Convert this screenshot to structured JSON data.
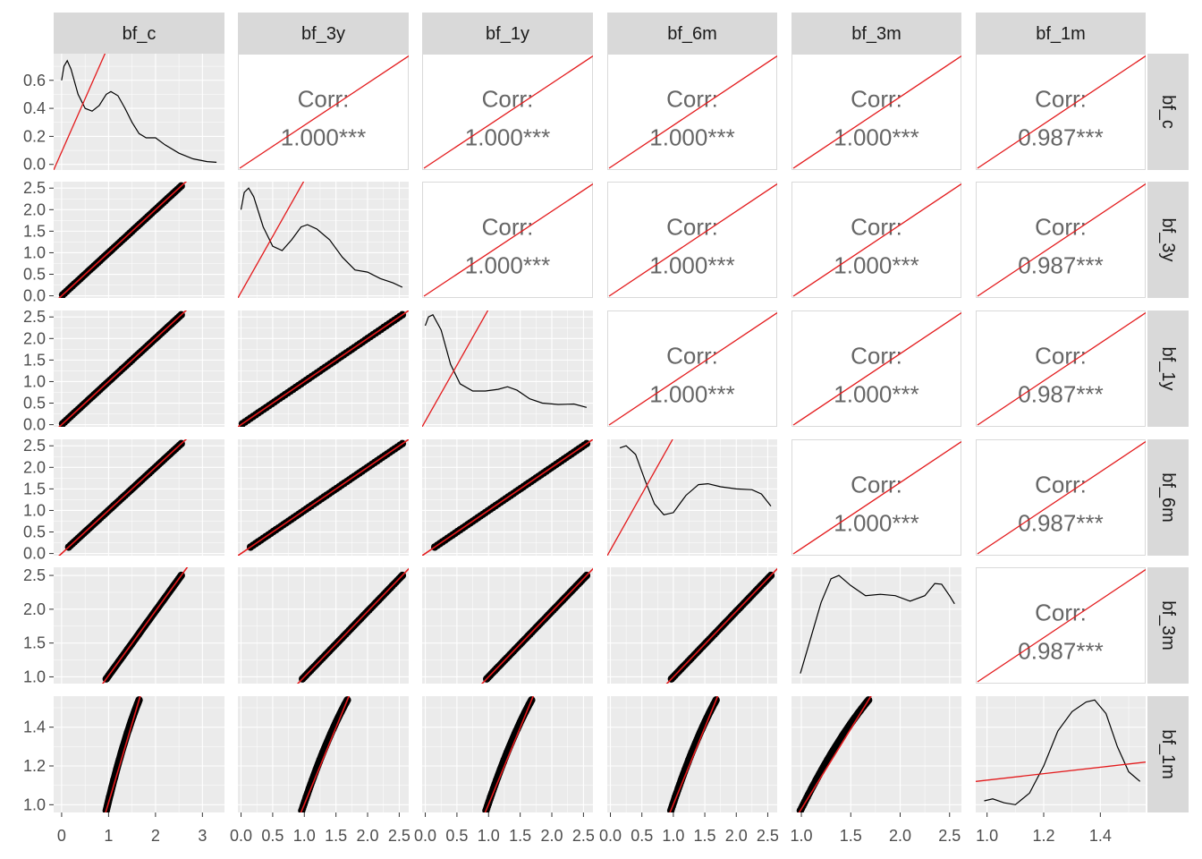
{
  "chart_data": {
    "type": "scatter-matrix",
    "variables": [
      "bf_c",
      "bf_3y",
      "bf_1y",
      "bf_6m",
      "bf_3m",
      "bf_1m"
    ],
    "corr_label": "Corr:",
    "correlations": [
      {
        "row": "bf_c",
        "col": "bf_3y",
        "value": "1.000***"
      },
      {
        "row": "bf_c",
        "col": "bf_1y",
        "value": "1.000***"
      },
      {
        "row": "bf_c",
        "col": "bf_6m",
        "value": "1.000***"
      },
      {
        "row": "bf_c",
        "col": "bf_3m",
        "value": "1.000***"
      },
      {
        "row": "bf_c",
        "col": "bf_1m",
        "value": "0.987***"
      },
      {
        "row": "bf_3y",
        "col": "bf_1y",
        "value": "1.000***"
      },
      {
        "row": "bf_3y",
        "col": "bf_6m",
        "value": "1.000***"
      },
      {
        "row": "bf_3y",
        "col": "bf_3m",
        "value": "1.000***"
      },
      {
        "row": "bf_3y",
        "col": "bf_1m",
        "value": "0.987***"
      },
      {
        "row": "bf_1y",
        "col": "bf_6m",
        "value": "1.000***"
      },
      {
        "row": "bf_1y",
        "col": "bf_3m",
        "value": "1.000***"
      },
      {
        "row": "bf_1y",
        "col": "bf_1m",
        "value": "0.987***"
      },
      {
        "row": "bf_6m",
        "col": "bf_3m",
        "value": "1.000***"
      },
      {
        "row": "bf_6m",
        "col": "bf_1m",
        "value": "0.987***"
      },
      {
        "row": "bf_3m",
        "col": "bf_1m",
        "value": "0.987***"
      }
    ],
    "x_axes": [
      {
        "var": "bf_c",
        "range": [
          -0.17,
          3.47
        ],
        "ticks": [
          {
            "v": 0,
            "label": "0"
          },
          {
            "v": 1,
            "label": "1"
          },
          {
            "v": 2,
            "label": "2"
          },
          {
            "v": 3,
            "label": "3"
          }
        ]
      },
      {
        "var": "bf_3y",
        "range": [
          -0.05,
          2.65
        ],
        "ticks": [
          {
            "v": 0,
            "label": "0.0"
          },
          {
            "v": 0.5,
            "label": "0.5"
          },
          {
            "v": 1,
            "label": "1.0"
          },
          {
            "v": 1.5,
            "label": "1.5"
          },
          {
            "v": 2,
            "label": "2.0"
          },
          {
            "v": 2.5,
            "label": "2.5"
          }
        ]
      },
      {
        "var": "bf_1y",
        "range": [
          -0.05,
          2.65
        ],
        "ticks": [
          {
            "v": 0,
            "label": "0.0"
          },
          {
            "v": 0.5,
            "label": "0.5"
          },
          {
            "v": 1,
            "label": "1.0"
          },
          {
            "v": 1.5,
            "label": "1.5"
          },
          {
            "v": 2,
            "label": "2.0"
          },
          {
            "v": 2.5,
            "label": "2.5"
          }
        ]
      },
      {
        "var": "bf_6m",
        "range": [
          -0.05,
          2.65
        ],
        "ticks": [
          {
            "v": 0,
            "label": "0.0"
          },
          {
            "v": 0.5,
            "label": "0.5"
          },
          {
            "v": 1,
            "label": "1.0"
          },
          {
            "v": 1.5,
            "label": "1.5"
          },
          {
            "v": 2,
            "label": "2.0"
          },
          {
            "v": 2.5,
            "label": "2.5"
          }
        ]
      },
      {
        "var": "bf_3m",
        "range": [
          0.9,
          2.62
        ],
        "ticks": [
          {
            "v": 1,
            "label": "1.0"
          },
          {
            "v": 1.5,
            "label": "1.5"
          },
          {
            "v": 2,
            "label": "2.0"
          },
          {
            "v": 2.5,
            "label": "2.5"
          }
        ]
      },
      {
        "var": "bf_1m",
        "range": [
          0.96,
          1.56
        ],
        "ticks": [
          {
            "v": 1,
            "label": "1.0"
          },
          {
            "v": 1.2,
            "label": "1.2"
          },
          {
            "v": 1.4,
            "label": "1.4"
          }
        ]
      }
    ],
    "y_axes": [
      {
        "var": "bf_c",
        "range": [
          -0.04,
          0.79
        ],
        "ticks": [
          {
            "v": 0,
            "label": "0.0"
          },
          {
            "v": 0.2,
            "label": "0.2"
          },
          {
            "v": 0.4,
            "label": "0.4"
          },
          {
            "v": 0.6,
            "label": "0.6"
          }
        ]
      },
      {
        "var": "bf_3y",
        "range": [
          -0.05,
          2.65
        ],
        "ticks": [
          {
            "v": 0,
            "label": "0.0"
          },
          {
            "v": 0.5,
            "label": "0.5"
          },
          {
            "v": 1,
            "label": "1.0"
          },
          {
            "v": 1.5,
            "label": "1.5"
          },
          {
            "v": 2,
            "label": "2.0"
          },
          {
            "v": 2.5,
            "label": "2.5"
          }
        ]
      },
      {
        "var": "bf_1y",
        "range": [
          -0.05,
          2.65
        ],
        "ticks": [
          {
            "v": 0,
            "label": "0.0"
          },
          {
            "v": 0.5,
            "label": "0.5"
          },
          {
            "v": 1,
            "label": "1.0"
          },
          {
            "v": 1.5,
            "label": "1.5"
          },
          {
            "v": 2,
            "label": "2.0"
          },
          {
            "v": 2.5,
            "label": "2.5"
          }
        ]
      },
      {
        "var": "bf_6m",
        "range": [
          -0.05,
          2.65
        ],
        "ticks": [
          {
            "v": 0,
            "label": "0.0"
          },
          {
            "v": 0.5,
            "label": "0.5"
          },
          {
            "v": 1,
            "label": "1.0"
          },
          {
            "v": 1.5,
            "label": "1.5"
          },
          {
            "v": 2,
            "label": "2.0"
          },
          {
            "v": 2.5,
            "label": "2.5"
          }
        ]
      },
      {
        "var": "bf_3m",
        "range": [
          0.9,
          2.62
        ],
        "ticks": [
          {
            "v": 1,
            "label": "1.0"
          },
          {
            "v": 1.5,
            "label": "1.5"
          },
          {
            "v": 2,
            "label": "2.0"
          },
          {
            "v": 2.5,
            "label": "2.5"
          }
        ]
      },
      {
        "var": "bf_1m",
        "range": [
          0.96,
          1.56
        ],
        "ticks": [
          {
            "v": 1,
            "label": "1.0"
          },
          {
            "v": 1.2,
            "label": "1.2"
          },
          {
            "v": 1.4,
            "label": "1.4"
          }
        ]
      }
    ],
    "densities": [
      {
        "var": "bf_c",
        "points": [
          [
            0,
            0.6
          ],
          [
            0.05,
            0.7
          ],
          [
            0.12,
            0.74
          ],
          [
            0.2,
            0.68
          ],
          [
            0.35,
            0.5
          ],
          [
            0.5,
            0.4
          ],
          [
            0.65,
            0.38
          ],
          [
            0.8,
            0.42
          ],
          [
            0.95,
            0.5
          ],
          [
            1.05,
            0.52
          ],
          [
            1.2,
            0.49
          ],
          [
            1.35,
            0.4
          ],
          [
            1.5,
            0.3
          ],
          [
            1.65,
            0.22
          ],
          [
            1.8,
            0.19
          ],
          [
            2.0,
            0.19
          ],
          [
            2.2,
            0.14
          ],
          [
            2.5,
            0.08
          ],
          [
            2.8,
            0.04
          ],
          [
            3.1,
            0.02
          ],
          [
            3.3,
            0.015
          ]
        ]
      },
      {
        "var": "bf_3y",
        "points": [
          [
            0,
            2.0
          ],
          [
            0.05,
            2.4
          ],
          [
            0.12,
            2.5
          ],
          [
            0.2,
            2.3
          ],
          [
            0.35,
            1.6
          ],
          [
            0.5,
            1.15
          ],
          [
            0.65,
            1.05
          ],
          [
            0.8,
            1.3
          ],
          [
            0.95,
            1.6
          ],
          [
            1.05,
            1.65
          ],
          [
            1.2,
            1.55
          ],
          [
            1.4,
            1.3
          ],
          [
            1.6,
            0.9
          ],
          [
            1.8,
            0.6
          ],
          [
            2.0,
            0.55
          ],
          [
            2.2,
            0.4
          ],
          [
            2.4,
            0.3
          ],
          [
            2.55,
            0.2
          ]
        ]
      },
      {
        "var": "bf_1y",
        "points": [
          [
            0,
            2.3
          ],
          [
            0.05,
            2.5
          ],
          [
            0.12,
            2.55
          ],
          [
            0.25,
            2.2
          ],
          [
            0.4,
            1.4
          ],
          [
            0.55,
            0.95
          ],
          [
            0.75,
            0.78
          ],
          [
            0.95,
            0.78
          ],
          [
            1.15,
            0.82
          ],
          [
            1.3,
            0.88
          ],
          [
            1.45,
            0.8
          ],
          [
            1.65,
            0.6
          ],
          [
            1.85,
            0.5
          ],
          [
            2.1,
            0.47
          ],
          [
            2.35,
            0.48
          ],
          [
            2.55,
            0.4
          ]
        ]
      },
      {
        "var": "bf_6m",
        "points": [
          [
            0.15,
            2.45
          ],
          [
            0.25,
            2.5
          ],
          [
            0.4,
            2.3
          ],
          [
            0.55,
            1.7
          ],
          [
            0.7,
            1.15
          ],
          [
            0.85,
            0.9
          ],
          [
            1.0,
            0.95
          ],
          [
            1.2,
            1.35
          ],
          [
            1.4,
            1.6
          ],
          [
            1.55,
            1.62
          ],
          [
            1.75,
            1.55
          ],
          [
            2.0,
            1.5
          ],
          [
            2.25,
            1.48
          ],
          [
            2.4,
            1.38
          ],
          [
            2.55,
            1.1
          ]
        ]
      },
      {
        "var": "bf_3m",
        "points": [
          [
            0.99,
            1.05
          ],
          [
            1.1,
            1.6
          ],
          [
            1.2,
            2.1
          ],
          [
            1.3,
            2.45
          ],
          [
            1.38,
            2.5
          ],
          [
            1.5,
            2.35
          ],
          [
            1.65,
            2.2
          ],
          [
            1.8,
            2.22
          ],
          [
            1.95,
            2.2
          ],
          [
            2.1,
            2.12
          ],
          [
            2.25,
            2.2
          ],
          [
            2.35,
            2.38
          ],
          [
            2.42,
            2.37
          ],
          [
            2.5,
            2.2
          ],
          [
            2.55,
            2.08
          ]
        ]
      },
      {
        "var": "bf_1m",
        "points": [
          [
            0.99,
            1.02
          ],
          [
            1.02,
            1.03
          ],
          [
            1.06,
            1.01
          ],
          [
            1.1,
            1.0
          ],
          [
            1.15,
            1.06
          ],
          [
            1.2,
            1.2
          ],
          [
            1.25,
            1.38
          ],
          [
            1.3,
            1.48
          ],
          [
            1.35,
            1.53
          ],
          [
            1.38,
            1.54
          ],
          [
            1.42,
            1.47
          ],
          [
            1.46,
            1.3
          ],
          [
            1.5,
            1.17
          ],
          [
            1.54,
            1.12
          ]
        ]
      }
    ],
    "fit_lines": {
      "note": "red"
    },
    "colors": {
      "strip_bg": "#d9d9d9",
      "panel_bg": "#ebebeb",
      "grid_major": "#ffffff",
      "points": "#000000",
      "fit_line": "#e31a1c",
      "density": "#000000",
      "corr_text": "#666666",
      "tick_text": "#4d4d4d"
    }
  }
}
